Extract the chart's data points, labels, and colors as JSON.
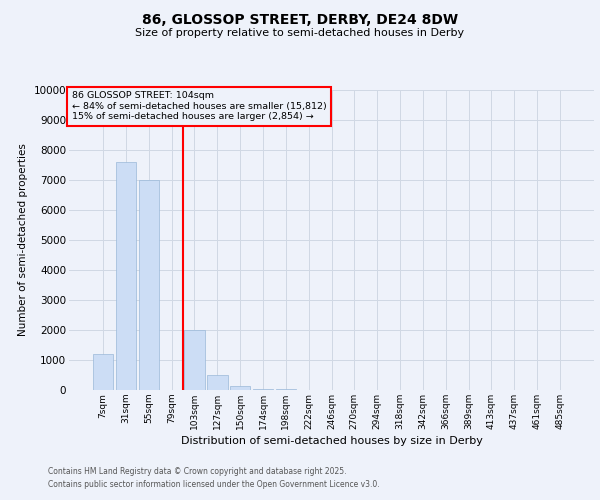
{
  "title_line1": "86, GLOSSOP STREET, DERBY, DE24 8DW",
  "title_line2": "Size of property relative to semi-detached houses in Derby",
  "xlabel": "Distribution of semi-detached houses by size in Derby",
  "ylabel": "Number of semi-detached properties",
  "categories": [
    "7sqm",
    "31sqm",
    "55sqm",
    "79sqm",
    "103sqm",
    "127sqm",
    "150sqm",
    "174sqm",
    "198sqm",
    "222sqm",
    "246sqm",
    "270sqm",
    "294sqm",
    "318sqm",
    "342sqm",
    "366sqm",
    "389sqm",
    "413sqm",
    "437sqm",
    "461sqm",
    "485sqm"
  ],
  "values": [
    1200,
    7600,
    7000,
    0,
    2000,
    500,
    150,
    50,
    20,
    5,
    5,
    5,
    0,
    0,
    0,
    0,
    0,
    0,
    0,
    0,
    0
  ],
  "bar_color": "#ccddf5",
  "bar_edge_color": "#9ab8d8",
  "marker_bin_idx": 4,
  "marker_color": "red",
  "annotation_line1": "86 GLOSSOP STREET: 104sqm",
  "annotation_line2": "← 84% of semi-detached houses are smaller (15,812)",
  "annotation_line3": "15% of semi-detached houses are larger (2,854) →",
  "footnote1": "Contains HM Land Registry data © Crown copyright and database right 2025.",
  "footnote2": "Contains public sector information licensed under the Open Government Licence v3.0.",
  "ylim": [
    0,
    10000
  ],
  "yticks": [
    0,
    1000,
    2000,
    3000,
    4000,
    5000,
    6000,
    7000,
    8000,
    9000,
    10000
  ],
  "grid_color": "#d0d8e4",
  "bg_color": "#eef2fa"
}
